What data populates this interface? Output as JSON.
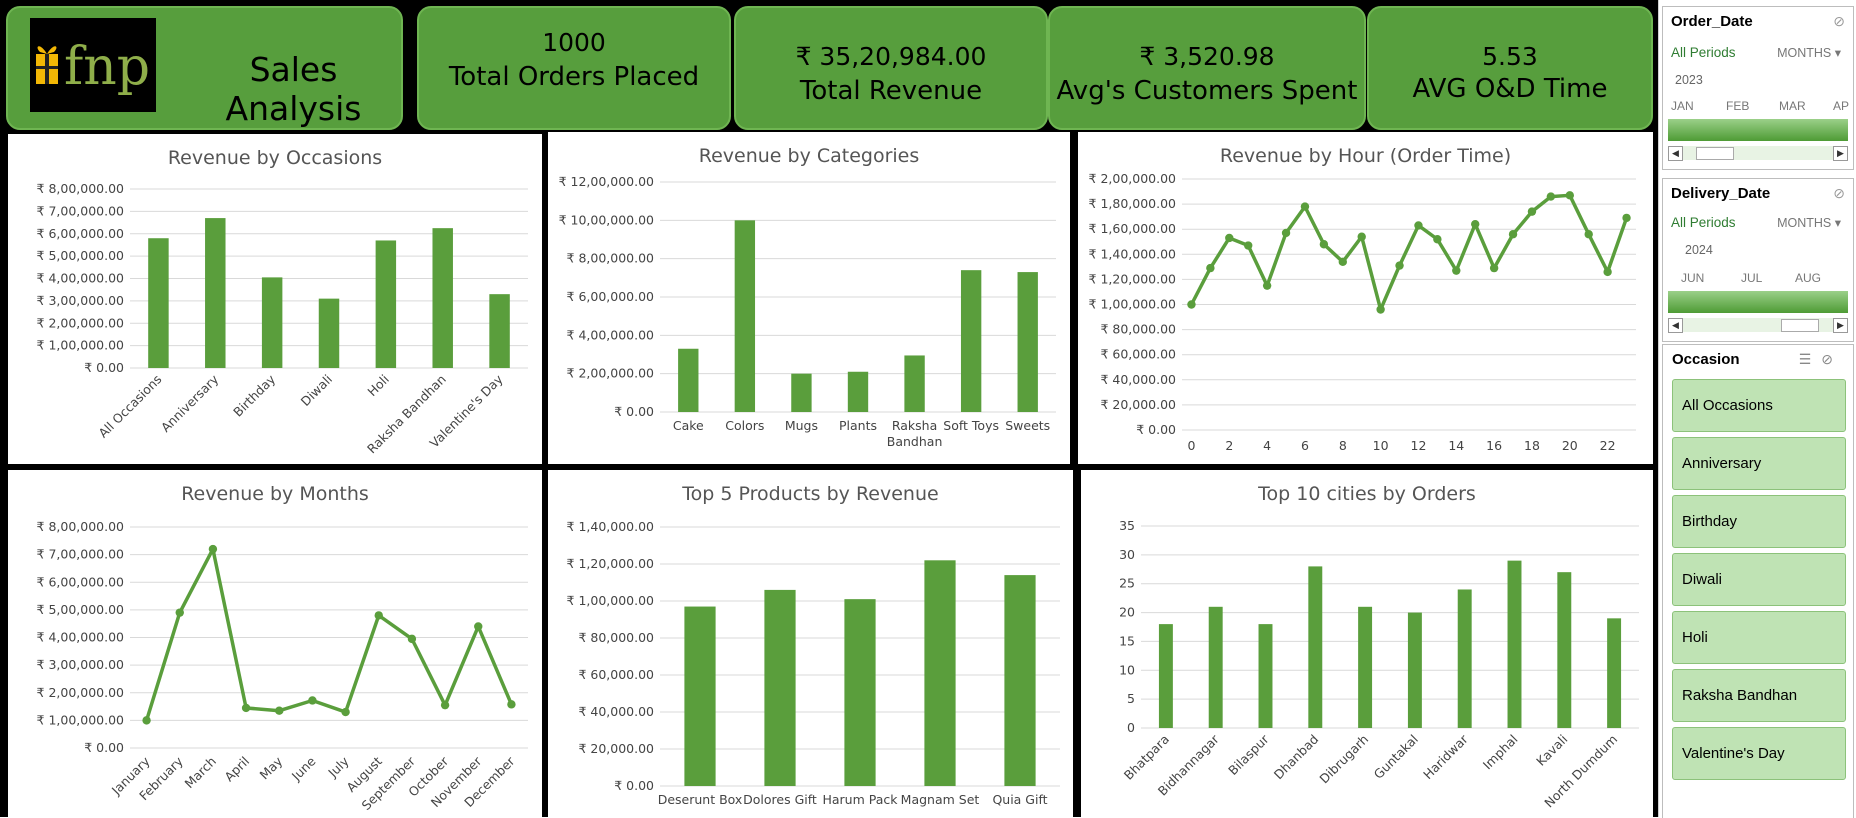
{
  "header": {
    "brand_text": "fnp",
    "title": "Sales Analysis",
    "kpis": [
      {
        "value": "1000",
        "label": "Total Orders Placed"
      },
      {
        "value": "₹ 35,20,984.00",
        "label": "Total Revenue"
      },
      {
        "value": "₹ 3,520.98",
        "label": "Avg's Customers Spent"
      },
      {
        "value": "5.53",
        "label": "AVG O&D Time"
      }
    ]
  },
  "colors": {
    "bar": "#5a9e3c",
    "kpi_bg": "#579e3d",
    "slicer_item": "#bfe3b4"
  },
  "chart_data": [
    {
      "id": "occasions",
      "type": "bar",
      "title": "Revenue by Occasions",
      "categories": [
        "All Occasions",
        "Anniversary",
        "Birthday",
        "Diwali",
        "Holi",
        "Raksha Bandhan",
        "Valentine's Day"
      ],
      "values": [
        580000,
        670000,
        405000,
        310000,
        570000,
        625000,
        330000
      ],
      "ylim": [
        0,
        800000
      ],
      "yticks": [
        0,
        100000,
        200000,
        300000,
        400000,
        500000,
        600000,
        700000,
        800000
      ],
      "ytick_labels": [
        "₹ 0.00",
        "₹ 1,00,000.00",
        "₹ 2,00,000.00",
        "₹ 3,00,000.00",
        "₹ 4,00,000.00",
        "₹ 5,00,000.00",
        "₹ 6,00,000.00",
        "₹ 7,00,000.00",
        "₹ 8,00,000.00"
      ]
    },
    {
      "id": "categories",
      "type": "bar",
      "title": "Revenue by Categories",
      "categories": [
        "Cake",
        "Colors",
        "Mugs",
        "Plants",
        "Raksha Bandhan",
        "Soft Toys",
        "Sweets"
      ],
      "values": [
        330000,
        1000000,
        200000,
        210000,
        295000,
        740000,
        730000
      ],
      "ylim": [
        0,
        1200000
      ],
      "yticks": [
        0,
        200000,
        400000,
        600000,
        800000,
        1000000,
        1200000
      ],
      "ytick_labels": [
        "₹ 0.00",
        "₹ 2,00,000.00",
        "₹ 4,00,000.00",
        "₹ 6,00,000.00",
        "₹ 8,00,000.00",
        "₹ 10,00,000.00",
        "₹ 12,00,000.00"
      ]
    },
    {
      "id": "hours",
      "type": "line",
      "title": "Revenue by Hour (Order Time)",
      "x": [
        0,
        1,
        2,
        3,
        4,
        5,
        6,
        7,
        8,
        9,
        10,
        11,
        12,
        13,
        14,
        15,
        16,
        17,
        18,
        19,
        20,
        21,
        22,
        23
      ],
      "values": [
        100000,
        129000,
        153000,
        147000,
        115000,
        157000,
        178000,
        148000,
        134000,
        154000,
        96000,
        131000,
        163000,
        152000,
        127000,
        164000,
        129000,
        156000,
        174000,
        186000,
        187000,
        156000,
        126000,
        169000
      ],
      "xtick_labels": [
        "0",
        "2",
        "4",
        "6",
        "8",
        "10",
        "12",
        "14",
        "16",
        "18",
        "20",
        "22"
      ],
      "ylim": [
        0,
        200000
      ],
      "yticks": [
        0,
        20000,
        40000,
        60000,
        80000,
        100000,
        120000,
        140000,
        160000,
        180000,
        200000
      ],
      "ytick_labels": [
        "₹ 0.00",
        "₹ 20,000.00",
        "₹ 40,000.00",
        "₹ 60,000.00",
        "₹ 80,000.00",
        "₹ 1,00,000.00",
        "₹ 1,20,000.00",
        "₹ 1,40,000.00",
        "₹ 1,60,000.00",
        "₹ 1,80,000.00",
        "₹ 2,00,000.00"
      ]
    },
    {
      "id": "months",
      "type": "line",
      "title": "Revenue by Months",
      "categories": [
        "January",
        "February",
        "March",
        "April",
        "May",
        "June",
        "July",
        "August",
        "September",
        "October",
        "November",
        "December"
      ],
      "values": [
        100000,
        490000,
        720000,
        145000,
        135000,
        172000,
        130000,
        480000,
        395000,
        155000,
        440000,
        158000
      ],
      "ylim": [
        0,
        800000
      ],
      "yticks": [
        0,
        100000,
        200000,
        300000,
        400000,
        500000,
        600000,
        700000,
        800000
      ],
      "ytick_labels": [
        "₹ 0.00",
        "₹ 1,00,000.00",
        "₹ 2,00,000.00",
        "₹ 3,00,000.00",
        "₹ 4,00,000.00",
        "₹ 5,00,000.00",
        "₹ 6,00,000.00",
        "₹ 7,00,000.00",
        "₹ 8,00,000.00"
      ]
    },
    {
      "id": "products",
      "type": "bar",
      "title": "Top 5 Products by Revenue",
      "categories": [
        "Deserunt Box",
        "Dolores Gift",
        "Harum Pack",
        "Magnam Set",
        "Quia Gift"
      ],
      "values": [
        97000,
        106000,
        101000,
        122000,
        114000
      ],
      "ylim": [
        0,
        140000
      ],
      "yticks": [
        0,
        20000,
        40000,
        60000,
        80000,
        100000,
        120000,
        140000
      ],
      "ytick_labels": [
        "₹ 0.00",
        "₹ 20,000.00",
        "₹ 40,000.00",
        "₹ 60,000.00",
        "₹ 80,000.00",
        "₹ 1,00,000.00",
        "₹ 1,20,000.00",
        "₹ 1,40,000.00"
      ]
    },
    {
      "id": "cities",
      "type": "bar",
      "title": "Top 10 cities by Orders",
      "categories": [
        "Bhatpara",
        "Bidhannagar",
        "Bilaspur",
        "Dhanbad",
        "Dibrugarh",
        "Guntakal",
        "Haridwar",
        "Imphal",
        "Kavali",
        "North Dumdum"
      ],
      "values": [
        18,
        21,
        18,
        28,
        21,
        20,
        24,
        29,
        27,
        19
      ],
      "ylim": [
        0,
        35
      ],
      "yticks": [
        0,
        5,
        10,
        15,
        20,
        25,
        30,
        35
      ],
      "ytick_labels": [
        "0",
        "5",
        "10",
        "15",
        "20",
        "25",
        "30",
        "35"
      ]
    }
  ],
  "timelines": [
    {
      "title": "Order_Date",
      "all_label": "All Periods",
      "level": "MONTHS",
      "year": "2023",
      "months": [
        "JAN",
        "FEB",
        "MAR",
        "AP"
      ],
      "scroll_position": 0.12
    },
    {
      "title": "Delivery_Date",
      "all_label": "All Periods",
      "level": "MONTHS",
      "year": "2024",
      "months": [
        "JUN",
        "JUL",
        "AUG"
      ],
      "scroll_position": 0.85
    }
  ],
  "slicer": {
    "title": "Occasion",
    "items": [
      "All Occasions",
      "Anniversary",
      "Birthday",
      "Diwali",
      "Holi",
      "Raksha Bandhan",
      "Valentine's Day"
    ]
  }
}
